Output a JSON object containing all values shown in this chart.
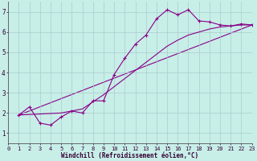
{
  "xlabel": "Windchill (Refroidissement éolien,°C)",
  "bg_color": "#c8eee8",
  "line_color": "#880088",
  "grid_color": "#aacccc",
  "xlim": [
    0,
    23
  ],
  "ylim": [
    0.5,
    7.5
  ],
  "xticks": [
    0,
    1,
    2,
    3,
    4,
    5,
    6,
    7,
    8,
    9,
    10,
    11,
    12,
    13,
    14,
    15,
    16,
    17,
    18,
    19,
    20,
    21,
    22,
    23
  ],
  "yticks": [
    1,
    2,
    3,
    4,
    5,
    6,
    7
  ],
  "curve1_x": [
    1,
    2,
    3,
    4,
    5,
    6,
    7,
    8,
    9,
    10,
    11,
    12,
    13,
    14,
    15,
    16,
    17,
    18,
    19,
    20,
    21,
    22,
    23
  ],
  "curve1_y": [
    1.9,
    2.3,
    1.5,
    1.4,
    1.8,
    2.1,
    2.0,
    2.6,
    2.6,
    3.9,
    4.7,
    5.4,
    5.85,
    6.65,
    7.1,
    6.85,
    7.1,
    6.55,
    6.5,
    6.35,
    6.3,
    6.4,
    6.35
  ],
  "curve2_x": [
    1,
    5,
    7,
    8,
    9,
    10,
    11,
    12,
    13,
    14,
    15,
    16,
    17,
    18,
    19,
    20,
    21,
    22,
    23
  ],
  "curve2_y": [
    1.9,
    2.0,
    2.2,
    2.55,
    2.9,
    3.3,
    3.7,
    4.1,
    4.5,
    4.9,
    5.3,
    5.6,
    5.85,
    6.0,
    6.15,
    6.25,
    6.3,
    6.35,
    6.35
  ],
  "curve3_x": [
    1,
    23
  ],
  "curve3_y": [
    1.9,
    6.35
  ],
  "tick_fontsize": 5.0,
  "xlabel_fontsize": 5.5,
  "lw": 0.8,
  "marker_size": 3.5
}
